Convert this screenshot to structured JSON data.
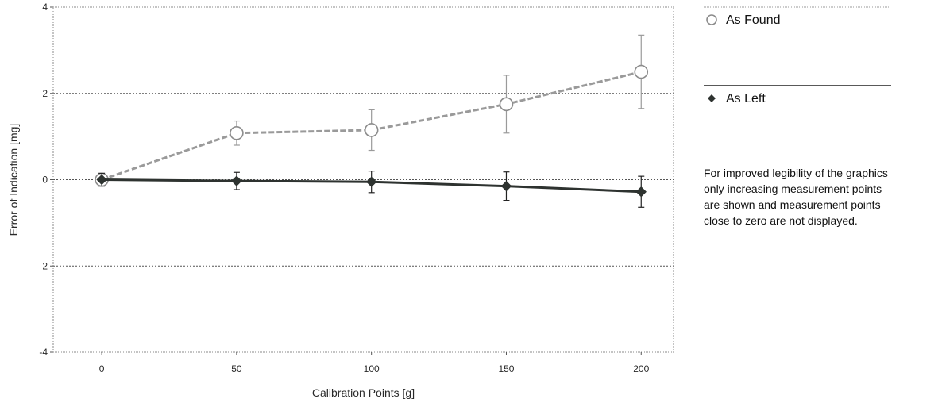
{
  "chart_data": {
    "type": "scatter",
    "x_axis": {
      "label": "Calibration Points [g]",
      "ticks": [
        0,
        50,
        100,
        150,
        200
      ],
      "range": [
        -18,
        212
      ]
    },
    "y_axis": {
      "label": "Error of Indication [mg]",
      "ticks": [
        4,
        2,
        0,
        -2,
        -4
      ],
      "range": [
        -4,
        4
      ]
    },
    "grid": true,
    "series": [
      {
        "name": "As Found",
        "color": "#9a9a9a",
        "line_style": "dashed",
        "marker": "open-circle",
        "points": [
          {
            "x": 0,
            "y": 0.0,
            "err": 0.1
          },
          {
            "x": 50,
            "y": 1.08,
            "err": 0.28
          },
          {
            "x": 100,
            "y": 1.15,
            "err": 0.47
          },
          {
            "x": 150,
            "y": 1.75,
            "err": 0.67
          },
          {
            "x": 200,
            "y": 2.5,
            "err": 0.85
          }
        ]
      },
      {
        "name": "As Left",
        "color": "#2e3330",
        "line_style": "solid",
        "marker": "diamond",
        "points": [
          {
            "x": 0,
            "y": 0.0,
            "err": 0.15
          },
          {
            "x": 50,
            "y": -0.03,
            "err": 0.2
          },
          {
            "x": 100,
            "y": -0.05,
            "err": 0.25
          },
          {
            "x": 150,
            "y": -0.15,
            "err": 0.33
          },
          {
            "x": 200,
            "y": -0.28,
            "err": 0.36
          }
        ]
      }
    ],
    "legend": {
      "placement": "right",
      "items": [
        {
          "label": "As Found",
          "marker": "open-circle"
        },
        {
          "label": "As Left",
          "marker": "diamond"
        }
      ]
    }
  },
  "note": {
    "lines": [
      "For improved legibility of the graphics",
      "only increasing measurement points",
      "are shown and measurement points",
      "close to zero are not displayed."
    ]
  }
}
